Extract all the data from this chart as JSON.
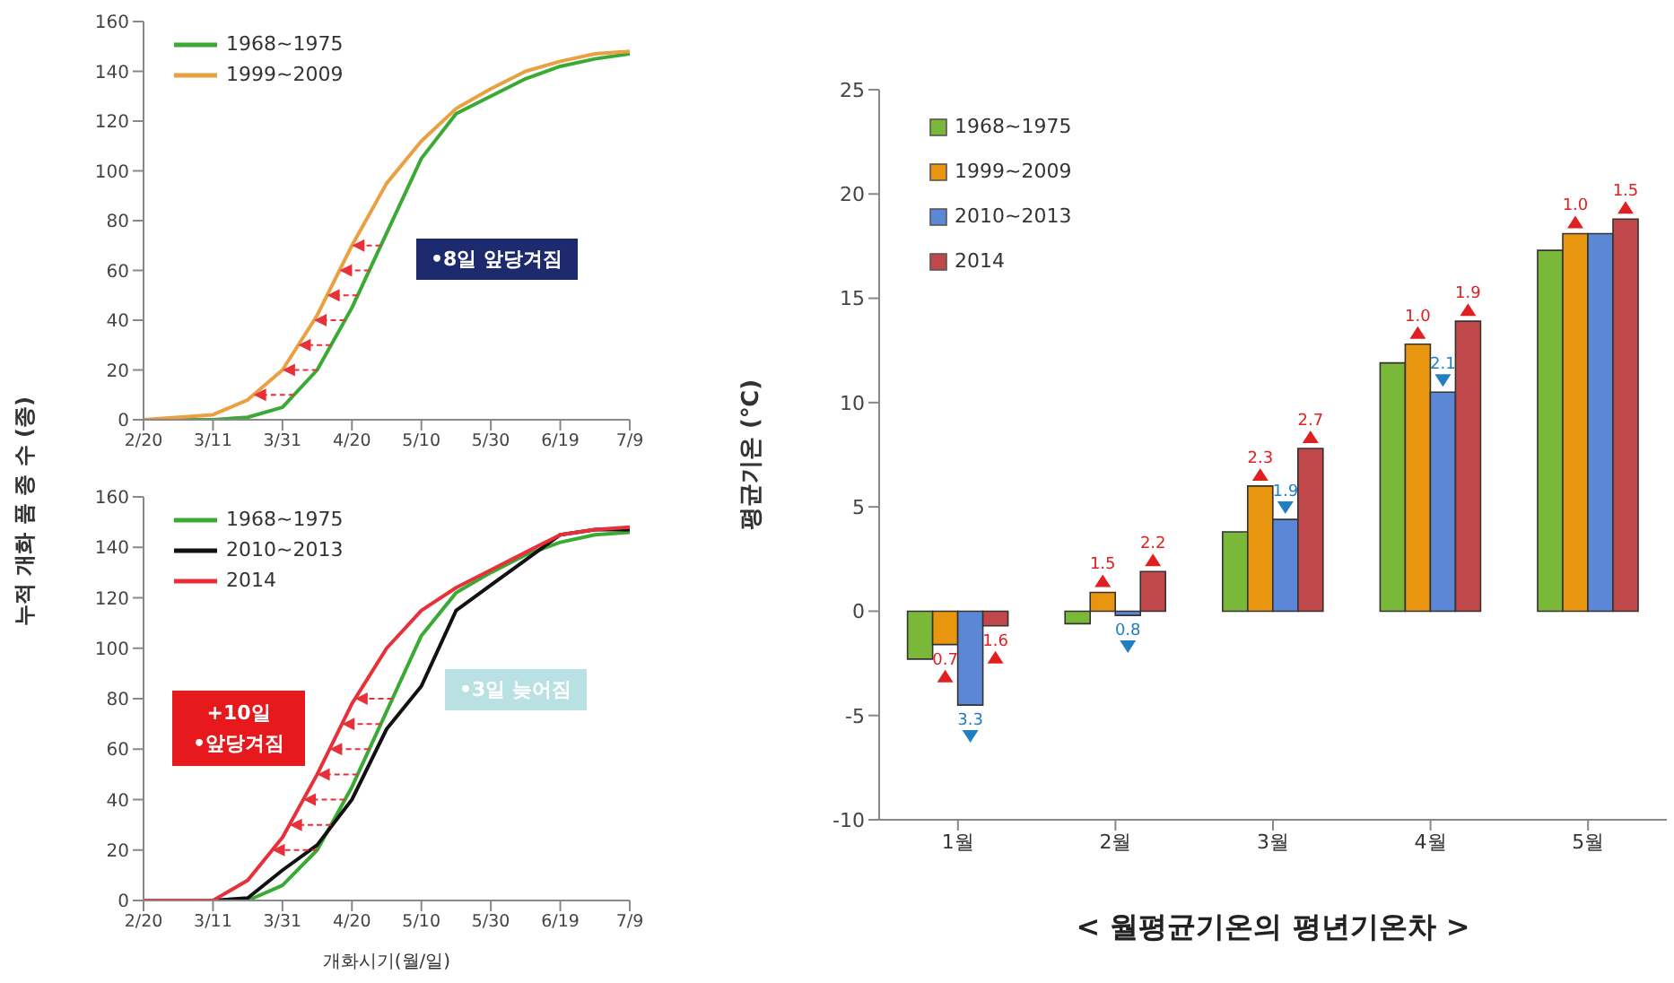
{
  "chart_data": [
    {
      "type": "line",
      "ylabel": "누적 개화 품 종 수 (종)",
      "xlim": [
        "--02-20",
        "--07-09"
      ],
      "xticks": [
        {
          "value": "--02-20",
          "label": "2/20"
        },
        {
          "value": "--03-11",
          "label": "3/11"
        },
        {
          "value": "--03-31",
          "label": "3/31"
        },
        {
          "value": "--04-20",
          "label": "4/20"
        },
        {
          "value": "--05-10",
          "label": "5/10"
        },
        {
          "value": "--05-30",
          "label": "5/30"
        },
        {
          "value": "--06-19",
          "label": "6/19"
        },
        {
          "value": "--07-09",
          "label": "7/9"
        }
      ],
      "ylim": [
        0,
        160
      ],
      "yticks": [
        0,
        20,
        40,
        60,
        80,
        100,
        120,
        140,
        160
      ],
      "legend": "top left",
      "annotations": [
        "•8일 앞당겨짐"
      ],
      "series": [
        {
          "name": "1968~1975",
          "color": "#3aaa35",
          "x": [
            "--02-20",
            "--03-11",
            "--03-21",
            "--03-31",
            "--04-10",
            "--04-20",
            "--04-30",
            "--05-10",
            "--05-20",
            "--05-30",
            "--06-09",
            "--06-19",
            "--06-29",
            "--07-09"
          ],
          "values": [
            0,
            0,
            1,
            5,
            20,
            45,
            75,
            105,
            123,
            130,
            137,
            142,
            145,
            147
          ]
        },
        {
          "name": "1999~2009",
          "color": "#e8a040",
          "x": [
            "--02-20",
            "--03-01",
            "--03-11",
            "--03-21",
            "--03-31",
            "--04-10",
            "--04-20",
            "--04-30",
            "--05-10",
            "--05-20",
            "--05-30",
            "--06-09",
            "--06-19",
            "--06-29",
            "--07-09"
          ],
          "values": [
            0,
            1,
            2,
            8,
            20,
            42,
            70,
            95,
            112,
            125,
            133,
            140,
            144,
            147,
            148
          ]
        }
      ]
    },
    {
      "type": "line",
      "xlabel": "개화시기(월/일)",
      "xlim": [
        "--02-20",
        "--07-09"
      ],
      "xticks": [
        {
          "value": "--02-20",
          "label": "2/20"
        },
        {
          "value": "--03-11",
          "label": "3/11"
        },
        {
          "value": "--03-31",
          "label": "3/31"
        },
        {
          "value": "--04-20",
          "label": "4/20"
        },
        {
          "value": "--05-10",
          "label": "5/10"
        },
        {
          "value": "--05-30",
          "label": "5/30"
        },
        {
          "value": "--06-19",
          "label": "6/19"
        },
        {
          "value": "--07-09",
          "label": "7/9"
        }
      ],
      "ylim": [
        0,
        160
      ],
      "yticks": [
        0,
        20,
        40,
        60,
        80,
        100,
        120,
        140,
        160
      ],
      "legend": "top left",
      "annotations": [
        "+10일\n•앞당겨짐",
        "•3일 늦어짐"
      ],
      "series": [
        {
          "name": "1968~1975",
          "color": "#3aaa35",
          "x": [
            "--02-20",
            "--03-21",
            "--03-31",
            "--04-10",
            "--04-20",
            "--04-30",
            "--05-10",
            "--05-20",
            "--05-30",
            "--06-09",
            "--06-19",
            "--06-29",
            "--07-09"
          ],
          "values": [
            0,
            0,
            6,
            20,
            45,
            75,
            105,
            122,
            130,
            137,
            142,
            145,
            146
          ]
        },
        {
          "name": "2010~2013",
          "color": "#111111",
          "x": [
            "--02-20",
            "--03-11",
            "--03-21",
            "--03-31",
            "--04-10",
            "--04-20",
            "--04-30",
            "--05-10",
            "--05-20",
            "--05-30",
            "--06-09",
            "--06-19",
            "--06-29",
            "--07-09"
          ],
          "values": [
            0,
            0,
            1,
            12,
            22,
            40,
            68,
            85,
            115,
            125,
            135,
            145,
            147,
            147
          ]
        },
        {
          "name": "2014",
          "color": "#e8303a",
          "x": [
            "--02-20",
            "--03-11",
            "--03-16",
            "--03-21",
            "--03-31",
            "--04-10",
            "--04-20",
            "--04-30",
            "--05-10",
            "--05-20",
            "--05-30",
            "--06-09",
            "--06-19",
            "--06-29",
            "--07-09"
          ],
          "values": [
            0,
            0,
            4,
            8,
            25,
            50,
            78,
            100,
            115,
            124,
            131,
            138,
            145,
            147,
            148
          ]
        }
      ]
    },
    {
      "type": "bar",
      "title": "< 월평균기온의 평년기온차 >",
      "ylabel": "평균기온 (℃)",
      "categories": [
        "1월",
        "2월",
        "3월",
        "4월",
        "5월"
      ],
      "ylim": [
        -10,
        25
      ],
      "yticks": [
        -10,
        -5,
        0,
        5,
        10,
        15,
        20,
        25
      ],
      "legend": "top left",
      "series": [
        {
          "name": "1968~1975",
          "color": "#7ab83a",
          "values": [
            -2.3,
            -0.6,
            3.8,
            11.9,
            17.3
          ]
        },
        {
          "name": "1999~2009",
          "color": "#e8960f",
          "values": [
            -1.6,
            0.9,
            6.0,
            12.8,
            18.1
          ]
        },
        {
          "name": "2010~2013",
          "color": "#5b87d6",
          "values": [
            -4.5,
            -0.2,
            4.4,
            10.5,
            18.1
          ]
        },
        {
          "name": "2014",
          "color": "#c0484a",
          "values": [
            -0.7,
            1.9,
            7.8,
            13.9,
            18.8
          ]
        }
      ],
      "annotations": [
        {
          "text": "0.7",
          "x": "1월",
          "y": -1.6
        },
        {
          "text": "3.3",
          "x": "1월",
          "y": -4.5
        },
        "1.6",
        {
          "text": "1.5",
          "x": "2월",
          "y": 0.9
        },
        {
          "text": "0.8",
          "x": "2월",
          "y": -0.2
        },
        "2.2",
        {
          "text": "2.3",
          "x": "3월",
          "y": 6.0
        },
        {
          "text": "1.9",
          "x": "3월",
          "y": 4.4
        },
        "2.7",
        {
          "text": "1.0",
          "x": "4월",
          "y": 12.8
        },
        {
          "text": "2.1",
          "x": "4월",
          "y": 10.5
        },
        "1.9",
        {
          "text": "1.0",
          "x": "5월",
          "y": 18.1
        },
        "1.5"
      ]
    }
  ]
}
